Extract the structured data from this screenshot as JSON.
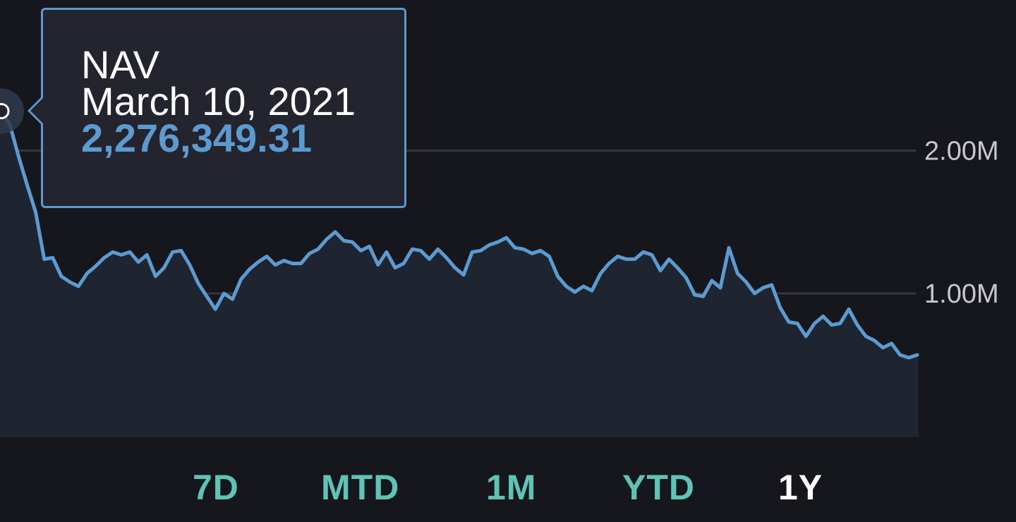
{
  "colors": {
    "background": "#16161d",
    "plot_fill": "#1e2531",
    "gridline": "#33363f",
    "line": "#5b9bd0",
    "tick_label": "#c8c8cc",
    "tooltip_bg": "#24242f",
    "tooltip_border": "#5b9bd0",
    "tooltip_text": "#ffffff",
    "tooltip_value": "#5b9bd0",
    "range_inactive": "#5fc3b5",
    "range_active": "#ffffff"
  },
  "tooltip": {
    "series": "NAV",
    "date": "March 10, 2021",
    "value": "2,276,349.31"
  },
  "range_buttons": [
    {
      "label": "7D",
      "active": false
    },
    {
      "label": "MTD",
      "active": false
    },
    {
      "label": "1M",
      "active": false
    },
    {
      "label": "YTD",
      "active": false
    },
    {
      "label": "1Y",
      "active": true
    }
  ],
  "chart_data": {
    "type": "area",
    "title": "",
    "xlabel": "",
    "ylabel": "",
    "y_tick_labels": [
      "1.00M",
      "2.00M"
    ],
    "y_ticks": [
      1000000,
      2000000
    ],
    "grid": true,
    "x_start": "2021-03-10",
    "x_end": "2022-03-10",
    "highlight": {
      "date": "2021-03-10",
      "value": 2276349.31
    },
    "values": [
      2276349,
      2180000,
      1960000,
      1760000,
      1570000,
      1240000,
      1250000,
      1120000,
      1080000,
      1050000,
      1140000,
      1190000,
      1250000,
      1290000,
      1270000,
      1290000,
      1220000,
      1270000,
      1120000,
      1180000,
      1290000,
      1300000,
      1200000,
      1070000,
      980000,
      890000,
      1000000,
      960000,
      1100000,
      1170000,
      1220000,
      1260000,
      1200000,
      1230000,
      1210000,
      1210000,
      1280000,
      1310000,
      1380000,
      1430000,
      1370000,
      1360000,
      1300000,
      1330000,
      1200000,
      1290000,
      1180000,
      1210000,
      1310000,
      1300000,
      1240000,
      1310000,
      1250000,
      1180000,
      1130000,
      1290000,
      1300000,
      1340000,
      1360000,
      1390000,
      1320000,
      1310000,
      1280000,
      1300000,
      1260000,
      1120000,
      1050000,
      1010000,
      1050000,
      1020000,
      1140000,
      1210000,
      1260000,
      1240000,
      1240000,
      1290000,
      1270000,
      1160000,
      1240000,
      1180000,
      1110000,
      990000,
      980000,
      1090000,
      1040000,
      1320000,
      1140000,
      1080000,
      1000000,
      1040000,
      1060000,
      900000,
      800000,
      790000,
      700000,
      790000,
      840000,
      780000,
      790000,
      890000,
      780000,
      700000,
      670000,
      620000,
      650000,
      570000,
      550000,
      570000
    ]
  }
}
